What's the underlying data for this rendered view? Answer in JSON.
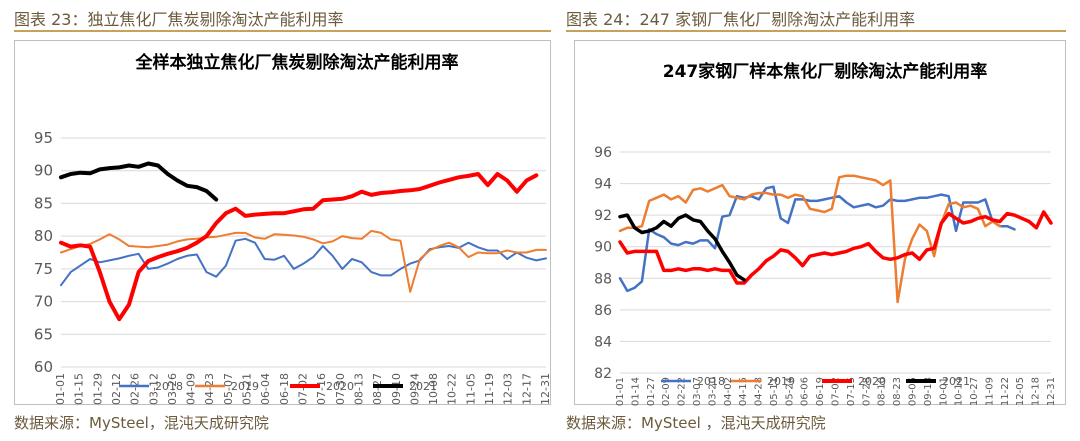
{
  "figures": [
    {
      "caption": "图表 23：独立焦化厂焦炭剔除淘汰产能利用率",
      "source": "数据来源：MySteel，混沌天成研究院"
    },
    {
      "caption": "图表 24：247 家钢厂焦化厂剔除淘汰产能利用率",
      "source": "数据来源：MySteel ，混沌天成研究院"
    }
  ],
  "colors": {
    "2018": "#4472c4",
    "2019": "#ed7d31",
    "2020": "#ff0000",
    "2021": "#000000",
    "grid": "#d9d9d9",
    "axis_text": "#595959",
    "rule": "#c8a25b"
  },
  "chart_data": [
    {
      "type": "line",
      "title": "全样本独立焦化厂焦炭剔除淘汰产能利用率",
      "x_labels": [
        "01-01",
        "01-15",
        "01-29",
        "02-12",
        "02-26",
        "03-12",
        "03-26",
        "04-09",
        "04-23",
        "05-07",
        "05-21",
        "06-04",
        "06-18",
        "07-02",
        "07-16",
        "07-30",
        "08-13",
        "08-27",
        "09-10",
        "09-24",
        "10-08",
        "10-22",
        "11-05",
        "11-19",
        "12-03",
        "12-17",
        "12-31"
      ],
      "ylim": [
        60,
        95
      ],
      "yticks": [
        60,
        65,
        70,
        75,
        80,
        85,
        90,
        95
      ],
      "grid": true,
      "legend_position": "bottom",
      "series": [
        {
          "name": "2018",
          "values": [
            72.5,
            74.5,
            75.5,
            76.5,
            76,
            76.3,
            76.6,
            77,
            77.3,
            75,
            75.2,
            75.8,
            76.5,
            77,
            77.2,
            74.5,
            73.8,
            75.5,
            79.3,
            79.6,
            79,
            76.5,
            76.4,
            77,
            75,
            75.8,
            76.8,
            78.5,
            77,
            75,
            76.5,
            76,
            74.5,
            74,
            74,
            75,
            75.8,
            76.3,
            78,
            78.3,
            78.5,
            78.2,
            79,
            78.3,
            77.8,
            77.8,
            76.5,
            77.5,
            76.7,
            76.3,
            76.6
          ]
        },
        {
          "name": "2019",
          "values": [
            77.5,
            78,
            78.5,
            78.8,
            79.5,
            80.3,
            79.5,
            78.5,
            78.4,
            78.3,
            78.5,
            78.7,
            79.2,
            79.5,
            79.6,
            79.8,
            79.9,
            80.2,
            80.5,
            80.5,
            79.8,
            79.6,
            80.3,
            80.2,
            80.1,
            79.9,
            79.5,
            78.9,
            79.2,
            80,
            79.7,
            79.6,
            80.8,
            80.5,
            79.5,
            79.3,
            71.5,
            76.5,
            77.8,
            78.5,
            79,
            78.3,
            76.8,
            77.5,
            77.4,
            77.4,
            77.8,
            77.5,
            77.5,
            77.9,
            77.9
          ]
        },
        {
          "name": "2020",
          "values": [
            79,
            78.4,
            78.6,
            78.4,
            74.5,
            70,
            67.3,
            69.5,
            74.5,
            76.2,
            76.8,
            77.3,
            77.7,
            78.2,
            79,
            80,
            82,
            83.5,
            84.2,
            83.1,
            83.3,
            83.4,
            83.5,
            83.5,
            83.8,
            84.1,
            84.2,
            85.5,
            85.6,
            85.7,
            86.1,
            86.8,
            86.3,
            86.6,
            86.7,
            86.9,
            87,
            87.2,
            87.7,
            88.2,
            88.6,
            89,
            89.2,
            89.5,
            87.8,
            89.5,
            88.5,
            86.8,
            88.5,
            89.3
          ]
        },
        {
          "name": "2021",
          "values": [
            89,
            89.5,
            89.7,
            89.6,
            90.2,
            90.4,
            90.5,
            90.8,
            90.6,
            91.1,
            90.8,
            89.5,
            88.5,
            87.7,
            87.5,
            86.9,
            85.6
          ]
        }
      ]
    },
    {
      "type": "line",
      "title": "247家钢厂样本焦化厂剔除淘汰产能利用率",
      "x_labels": [
        "01-01",
        "01-14",
        "01-27",
        "02-09",
        "02-22",
        "03-07",
        "03-20",
        "04-02",
        "04-15",
        "04-28",
        "05-11",
        "05-24",
        "06-06",
        "06-19",
        "07-02",
        "07-15",
        "07-28",
        "08-10",
        "08-23",
        "09-05",
        "09-18",
        "10-01",
        "10-14",
        "10-27",
        "11-09",
        "11-22",
        "12-05",
        "12-18",
        "12-31"
      ],
      "ylim": [
        82,
        96
      ],
      "yticks": [
        82,
        84,
        86,
        88,
        90,
        92,
        94,
        96
      ],
      "grid": true,
      "legend_position": "bottom",
      "series": [
        {
          "name": "2018",
          "values": [
            88,
            87.2,
            87.4,
            87.8,
            91.1,
            90.8,
            90.6,
            90.2,
            90.1,
            90.3,
            90.2,
            90.4,
            90.4,
            89.9,
            91.9,
            92,
            93.2,
            93.1,
            93.2,
            93,
            93.7,
            93.8,
            91.8,
            91.5,
            93,
            93,
            92.9,
            92.9,
            93,
            93.1,
            93.2,
            92.8,
            92.5,
            92.6,
            92.7,
            92.5,
            92.6,
            93,
            92.9,
            92.9,
            93,
            93.1,
            93.1,
            93.2,
            93.3,
            93.2,
            91,
            92.8,
            92.8,
            92.8,
            93,
            91.6,
            91.3,
            91.3,
            91.1
          ]
        },
        {
          "name": "2019",
          "values": [
            91,
            91.2,
            91.2,
            91.3,
            92.9,
            93.1,
            93.3,
            93,
            93.2,
            92.8,
            93.6,
            93.7,
            93.5,
            93.7,
            93.9,
            93.2,
            93.1,
            93,
            93.3,
            93.4,
            93.4,
            93.3,
            93.3,
            93.1,
            93.3,
            93.2,
            92.4,
            92.3,
            92.2,
            92.4,
            94.4,
            94.5,
            94.5,
            94.4,
            94.3,
            94.2,
            93.9,
            94.2,
            86.5,
            89.2,
            90.5,
            91.4,
            91,
            89.4,
            91.5,
            92.7,
            92.8,
            92.5,
            92.6,
            92.4,
            91.3,
            91.6,
            91.3
          ]
        },
        {
          "name": "2020",
          "values": [
            90.3,
            89.6,
            89.7,
            89.7,
            89.7,
            89.7,
            88.5,
            88.5,
            88.6,
            88.5,
            88.6,
            88.6,
            88.5,
            88.6,
            88.5,
            88.5,
            87.7,
            87.7,
            88.2,
            88.6,
            89.1,
            89.4,
            89.8,
            89.7,
            89.3,
            88.8,
            89.4,
            89.5,
            89.6,
            89.5,
            89.6,
            89.7,
            89.9,
            90,
            90.2,
            89.7,
            89.3,
            89.2,
            89.3,
            89.5,
            89.6,
            89.2,
            89.8,
            89.9,
            91.5,
            92.1,
            91.8,
            91.5,
            91.6,
            91.8,
            91.9,
            91.7,
            91.6,
            92.1,
            92,
            91.8,
            91.6,
            91.2,
            92.2,
            91.5
          ]
        },
        {
          "name": "2021",
          "values": [
            91.9,
            92,
            91.2,
            90.9,
            91,
            91.2,
            91.6,
            91.3,
            91.8,
            92,
            91.7,
            91.6,
            91,
            90.5,
            89.7,
            89,
            88.2,
            87.9
          ]
        }
      ]
    }
  ]
}
